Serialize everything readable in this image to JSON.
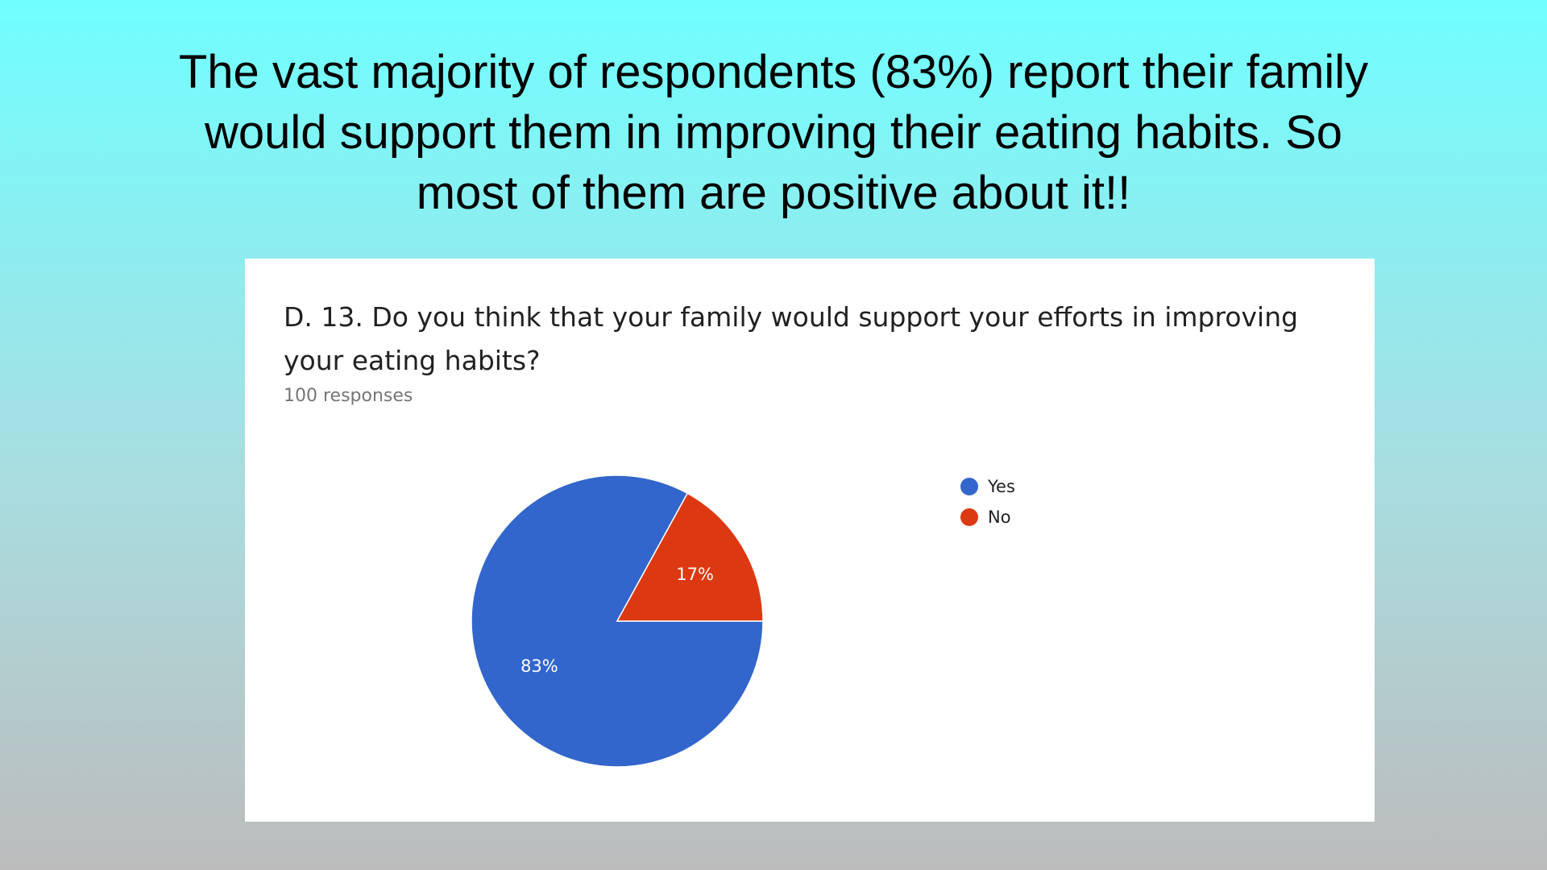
{
  "slide": {
    "title_lines": [
      "The vast majority of respondents (83%) report their family",
      "would support them in improving their eating habits. So",
      "most of them are positive about it!!"
    ]
  },
  "chart_data": {
    "type": "pie",
    "title": "D. 13. Do you think that your family would support your efforts in improving your eating habits?",
    "subtitle": "100 responses",
    "categories": [
      "Yes",
      "No"
    ],
    "values": [
      83,
      17
    ],
    "labels": [
      "83%",
      "17%"
    ],
    "colors": [
      "#3366cc",
      "#dc3912"
    ],
    "legend_position": "right"
  }
}
